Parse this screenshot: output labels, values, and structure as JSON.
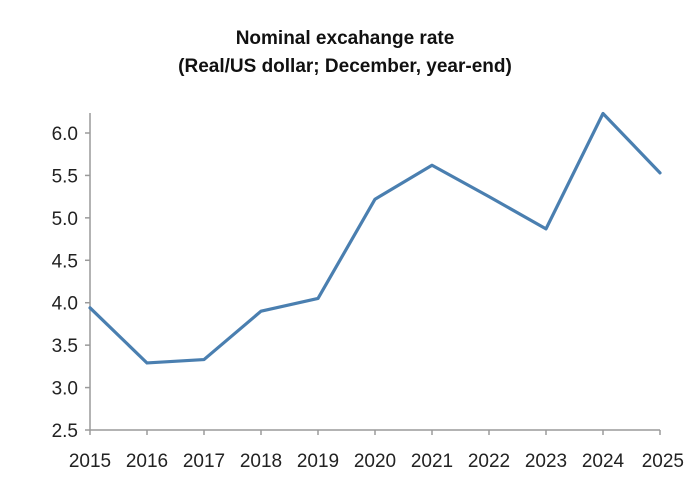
{
  "chart_data": {
    "type": "line",
    "title": "Nominal excahange rate",
    "subtitle": "(Real/US dollar; December, year-end)",
    "xlabel": "",
    "ylabel": "",
    "x": [
      "2015",
      "2016",
      "2017",
      "2018",
      "2019",
      "2020",
      "2021",
      "2022",
      "2023",
      "2024",
      "2025"
    ],
    "series": [
      {
        "values": [
          3.94,
          3.29,
          3.33,
          3.9,
          4.05,
          5.22,
          5.62,
          5.25,
          4.87,
          6.23,
          5.53
        ]
      }
    ],
    "ylim": [
      2.5,
      6.0
    ],
    "yticks": [
      "2.5",
      "3.0",
      "3.5",
      "4.0",
      "4.5",
      "5.0",
      "5.5",
      "6.0"
    ],
    "grid": false,
    "legend": "none",
    "line_color": "#4a7fb0",
    "axis_color": "#9a9a9a"
  }
}
